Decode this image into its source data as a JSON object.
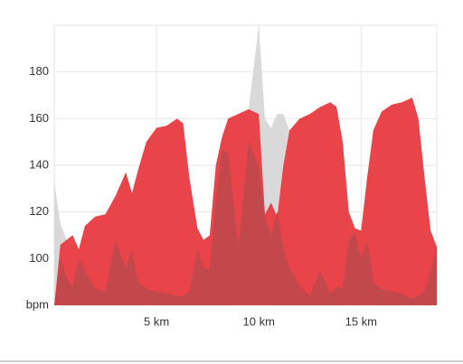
{
  "chart_data": {
    "type": "area",
    "x": [
      0,
      0.3,
      0.6,
      0.9,
      1.2,
      1.5,
      2.0,
      2.5,
      3.0,
      3.5,
      3.8,
      4.1,
      4.5,
      5.0,
      5.5,
      6.0,
      6.3,
      6.6,
      7.0,
      7.3,
      7.6,
      7.9,
      8.2,
      8.5,
      9.0,
      9.5,
      10.0,
      10.3,
      10.6,
      10.9,
      11.2,
      11.5,
      12.0,
      12.5,
      13.0,
      13.5,
      13.8,
      14.1,
      14.4,
      14.7,
      15.0,
      15.3,
      15.6,
      16.0,
      16.5,
      17.0,
      17.5,
      17.8,
      18.1,
      18.4,
      18.7
    ],
    "series": [
      {
        "color": "#d9d9d9",
        "values": [
          133,
          115,
          108,
          110,
          104,
          114,
          118,
          119,
          127,
          137,
          128,
          138,
          150,
          156,
          157,
          160,
          158,
          135,
          113,
          108,
          110,
          140,
          152,
          160,
          162,
          164,
          200,
          160,
          156,
          162,
          162,
          155,
          160,
          162,
          165,
          167,
          165,
          150,
          120,
          113,
          112,
          135,
          155,
          163,
          166,
          167,
          169,
          160,
          135,
          112,
          105
        ]
      },
      {
        "color": "#e8444a",
        "values": [
          80,
          106,
          108,
          110,
          104,
          114,
          118,
          119,
          127,
          137,
          128,
          138,
          150,
          156,
          157,
          160,
          158,
          135,
          113,
          108,
          110,
          140,
          152,
          160,
          162,
          164,
          162,
          119,
          124,
          118,
          140,
          155,
          160,
          162,
          165,
          167,
          165,
          150,
          120,
          113,
          112,
          135,
          155,
          163,
          166,
          167,
          169,
          160,
          135,
          112,
          105
        ]
      },
      {
        "color": "#c2484c",
        "values": [
          80,
          100,
          92,
          88,
          100,
          95,
          87,
          86,
          108,
          96,
          104,
          90,
          87,
          86,
          85,
          84,
          84,
          86,
          104,
          96,
          95,
          125,
          147,
          145,
          105,
          150,
          140,
          118,
          110,
          120,
          105,
          96,
          88,
          84,
          95,
          85,
          88,
          87,
          108,
          111,
          100,
          108,
          90,
          87,
          86,
          85,
          83,
          84,
          86,
          95,
          105
        ]
      }
    ],
    "xlim": [
      0,
      18.7
    ],
    "ylim": [
      80,
      200
    ],
    "xticks": [
      {
        "value": 5,
        "label": "5 km"
      },
      {
        "value": 10,
        "label": "10 km"
      },
      {
        "value": 15,
        "label": "15 km"
      }
    ],
    "yticks": [
      {
        "value": 80,
        "label": "bpm"
      },
      100,
      120,
      140,
      160,
      180
    ],
    "grid": true
  }
}
